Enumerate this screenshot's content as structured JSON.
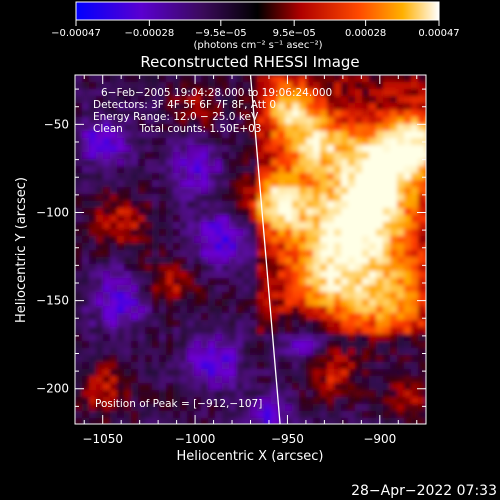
{
  "colorbar": {
    "ticks": [
      {
        "value": -0.00047,
        "label": "−0.00047"
      },
      {
        "value": -0.00028,
        "label": "−0.00028"
      },
      {
        "value": -9.5e-05,
        "label": "−9.5e−05"
      },
      {
        "value": 9.5e-05,
        "label": "9.5e−05"
      },
      {
        "value": 0.00028,
        "label": "0.00028"
      },
      {
        "value": 0.00047,
        "label": "0.00047"
      }
    ],
    "range": [
      -0.00047,
      0.00047
    ],
    "units_label": "(photons cm⁻² s⁻¹ asec⁻²)",
    "colors": [
      "#0000ff",
      "#7a00c8",
      "#3a0a5a",
      "#000000",
      "#c00000",
      "#ff4000",
      "#ffb000",
      "#ffffff"
    ]
  },
  "chart_data": {
    "type": "heatmap",
    "title": "Reconstructed RHESSI Image",
    "xlabel": "Heliocentric X (arcsec)",
    "ylabel": "Heliocentric Y (arcsec)",
    "xlim": [
      -1065,
      -875
    ],
    "ylim": [
      -220,
      -22
    ],
    "x_ticks": [
      {
        "value": -1050,
        "label": "−1050"
      },
      {
        "value": -1000,
        "label": "−1000"
      },
      {
        "value": -950,
        "label": "−950"
      },
      {
        "value": -900,
        "label": "−900"
      }
    ],
    "y_ticks": [
      {
        "value": -50,
        "label": "−50"
      },
      {
        "value": -100,
        "label": "−100"
      },
      {
        "value": -150,
        "label": "−150"
      },
      {
        "value": -200,
        "label": "−200"
      }
    ],
    "limb_line": [
      [
        -970,
        -22
      ],
      [
        -954,
        -220
      ]
    ],
    "peak": [
      -912,
      -107
    ],
    "annotations": {
      "time_range": "6−Feb−2005 19:04:28.000 to 19:06:24.000",
      "detectors": "Detectors: 3F 4F 5F 6F 7F 8F, Att 0",
      "energy": "Energy Range: 12.0 − 25.0 keV",
      "clean": "Clean     Total counts: 1.50E+03",
      "peak_label": "Position of Peak = [−912,−107]"
    }
  },
  "timestamp": "28−Apr−2022 07:33"
}
